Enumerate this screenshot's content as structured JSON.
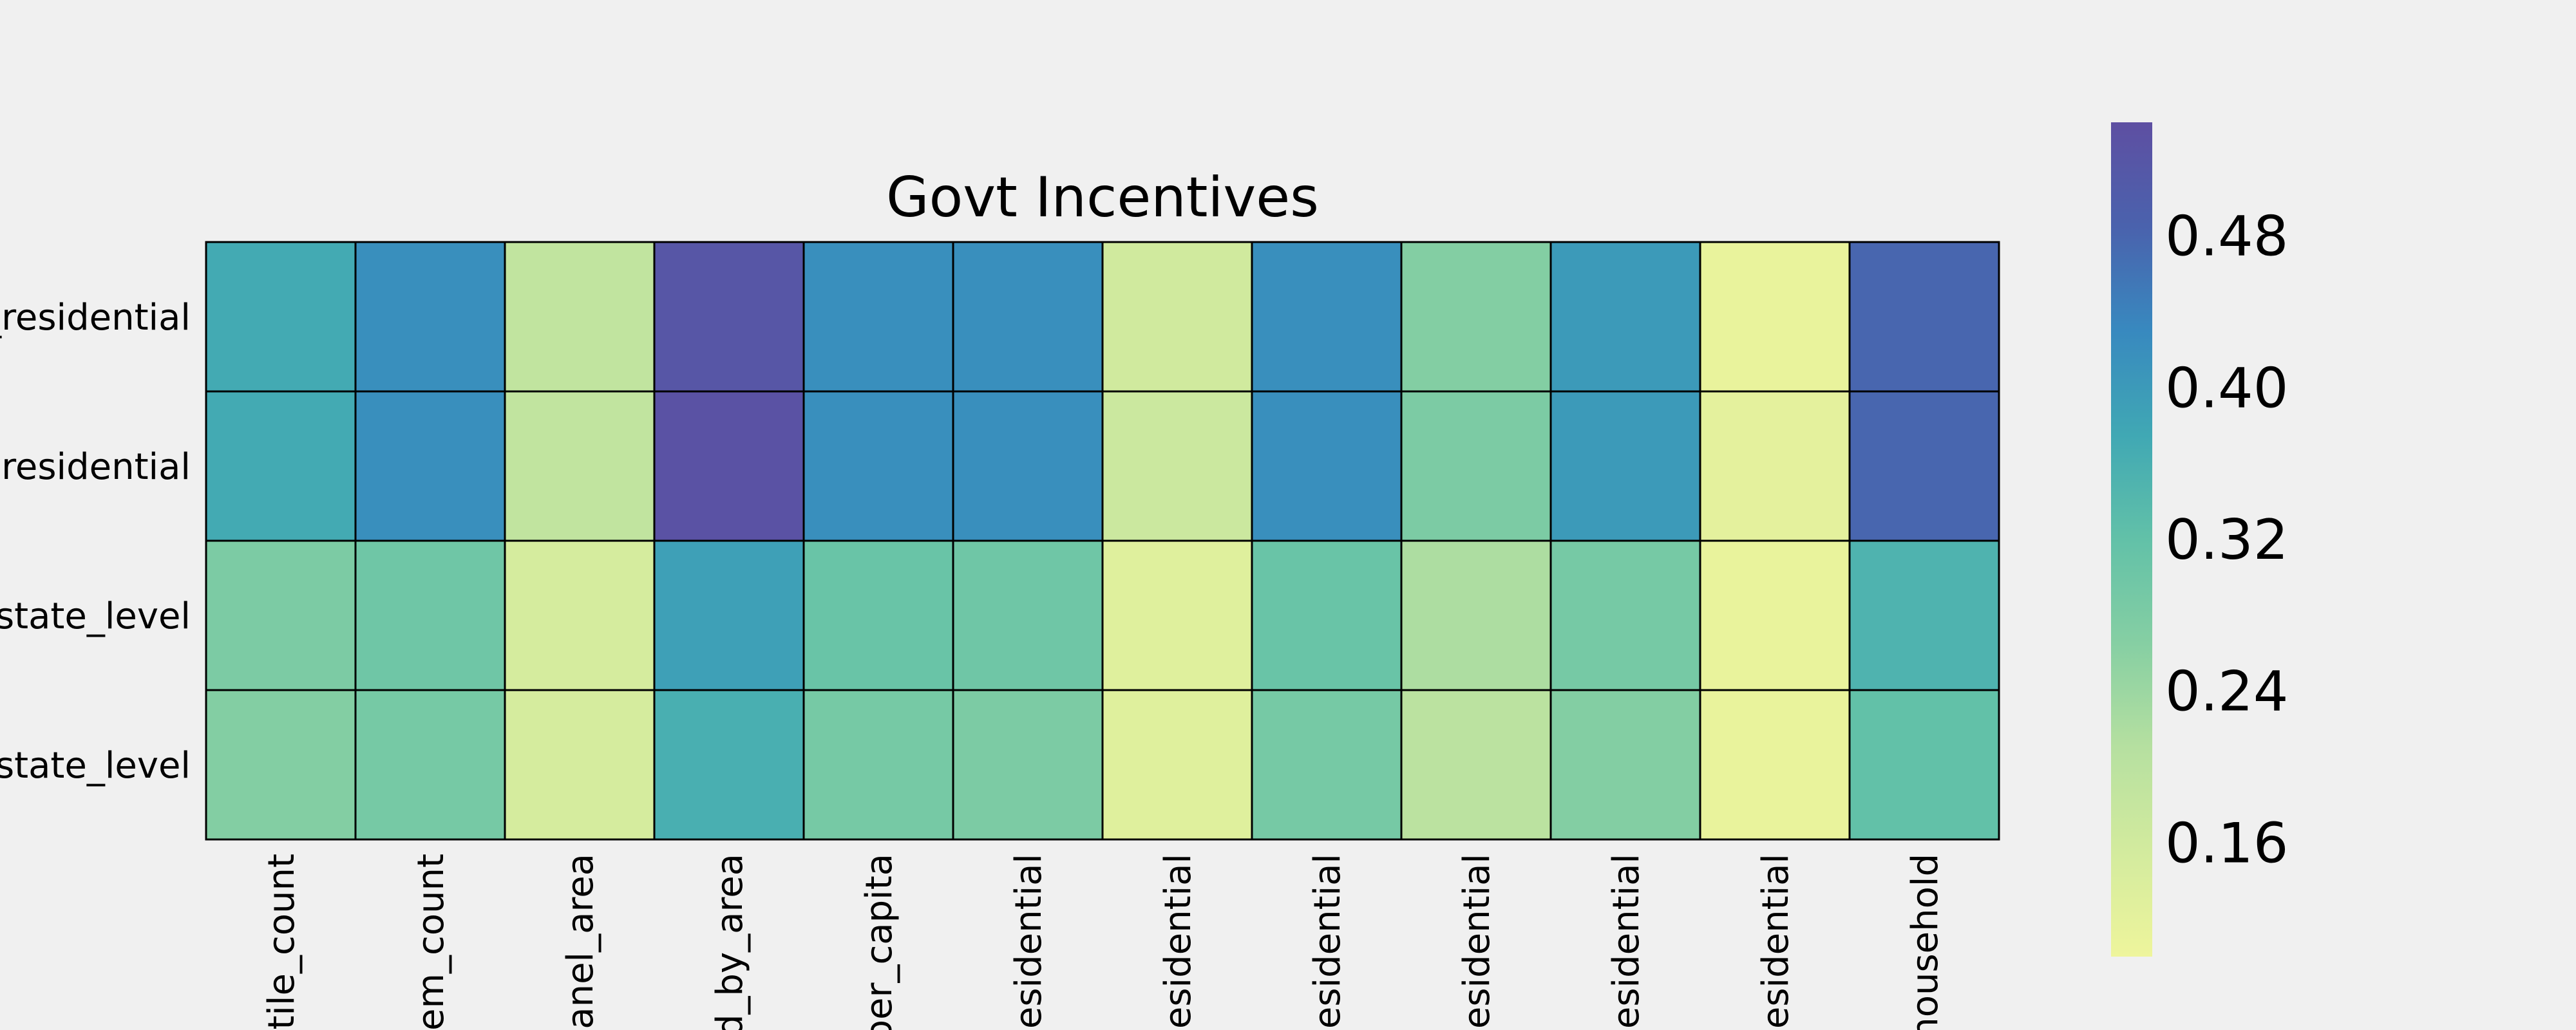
{
  "chart_data": {
    "type": "heatmap",
    "title": "Govt Incentives",
    "xlabel": "",
    "ylabel": "",
    "row_labels": [
      "_residential",
      "residential",
      "state_level",
      "state_level"
    ],
    "col_labels": [
      "tile_count",
      "em_count",
      "anel_area",
      "d_by_area",
      "per_capita",
      "esidential",
      "esidential",
      "esidential",
      "esidential",
      "esidential",
      "esidential",
      "household"
    ],
    "values": [
      [
        0.37,
        0.42,
        0.19,
        0.52,
        0.42,
        0.42,
        0.16,
        0.42,
        0.27,
        0.4,
        0.11,
        0.48
      ],
      [
        0.37,
        0.42,
        0.19,
        0.53,
        0.42,
        0.42,
        0.17,
        0.42,
        0.28,
        0.4,
        0.12,
        0.48
      ],
      [
        0.28,
        0.3,
        0.15,
        0.39,
        0.31,
        0.3,
        0.13,
        0.31,
        0.22,
        0.29,
        0.11,
        0.35
      ],
      [
        0.27,
        0.29,
        0.15,
        0.36,
        0.29,
        0.28,
        0.13,
        0.29,
        0.2,
        0.27,
        0.11,
        0.32
      ]
    ],
    "colorbar": {
      "min": 0.1,
      "max": 0.54,
      "ticks": [
        0.16,
        0.24,
        0.32,
        0.4,
        0.48
      ],
      "tick_labels": [
        "0.16",
        "0.24",
        "0.32",
        "0.40",
        "0.48"
      ],
      "colormap": [
        "#eef59c",
        "#d3eb9e",
        "#b6e0a0",
        "#86cfa3",
        "#62c1a8",
        "#40a8b4",
        "#3889bf",
        "#4a62ad",
        "#5e4fa2"
      ]
    },
    "grid": true,
    "cell_border_color": "#000000",
    "background_color": "#f0f0f0"
  }
}
